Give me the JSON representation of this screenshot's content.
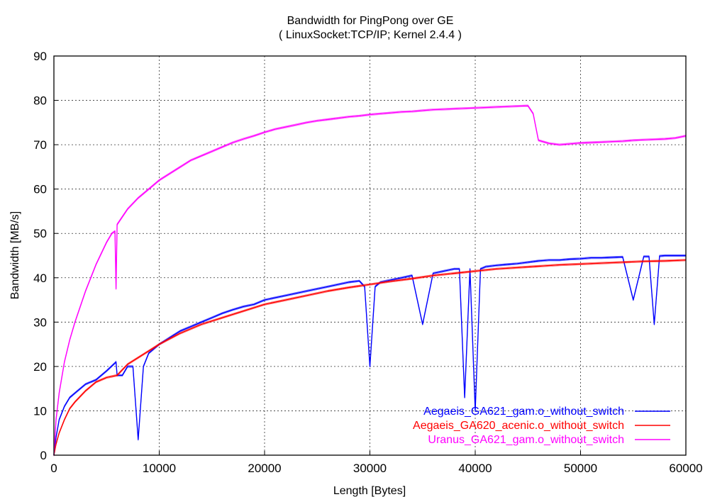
{
  "chart_data": {
    "type": "line",
    "title": "Bandwidth for PingPong over GE",
    "subtitle": "( LinuxSocket:TCP/IP; Kernel 2.4.4 )",
    "xlabel": "Length [Bytes]",
    "ylabel": "Bandwidth [MB/s]",
    "xlim": [
      0,
      60000
    ],
    "ylim": [
      0,
      90
    ],
    "xticks": [
      0,
      10000,
      20000,
      30000,
      40000,
      50000,
      60000
    ],
    "yticks": [
      0,
      10,
      20,
      30,
      40,
      50,
      60,
      70,
      80,
      90
    ],
    "grid": true,
    "legend_position": "bottom-right",
    "series": [
      {
        "name": "Aegaeis_GA621_gam.o_without_switch",
        "color": "#0000ff",
        "x": [
          0,
          200,
          500,
          1000,
          1500,
          2000,
          3000,
          4000,
          5000,
          5900,
          6000,
          6500,
          7000,
          7500,
          8000,
          8500,
          9000,
          10000,
          11000,
          12000,
          13000,
          14000,
          15000,
          16000,
          17000,
          18000,
          19000,
          20000,
          22000,
          24000,
          26000,
          28000,
          29000,
          29500,
          30000,
          30500,
          31000,
          32000,
          33000,
          34000,
          35000,
          36000,
          37000,
          38000,
          38500,
          39000,
          39500,
          40000,
          40500,
          41000,
          42000,
          43000,
          44000,
          45000,
          46000,
          47000,
          48000,
          49000,
          50000,
          51000,
          52000,
          53000,
          54000,
          55000,
          56000,
          56500,
          57000,
          57500,
          58000,
          59000,
          60000
        ],
        "y": [
          0,
          4,
          8,
          11,
          13,
          14,
          16,
          17,
          19,
          21,
          18,
          18,
          20,
          20,
          3.5,
          20,
          23,
          25,
          26.5,
          28,
          29,
          30,
          31,
          32,
          32.8,
          33.5,
          34,
          35,
          36,
          37,
          38,
          39,
          39.3,
          38,
          20,
          38,
          39,
          39.5,
          40,
          40.5,
          29.5,
          41,
          41.5,
          42,
          42,
          13,
          42,
          10,
          42,
          42.5,
          42.8,
          43,
          43.2,
          43.5,
          43.8,
          44,
          44,
          44.2,
          44.3,
          44.5,
          44.5,
          44.6,
          44.7,
          35,
          44.8,
          44.8,
          29.5,
          44.9,
          45,
          45,
          45
        ]
      },
      {
        "name": "Aegaeis_GA620_acenic.o_without_switch",
        "color": "#ff0000",
        "x": [
          0,
          200,
          500,
          1000,
          1500,
          2000,
          3000,
          4000,
          5000,
          6000,
          7000,
          8000,
          9000,
          10000,
          12000,
          14000,
          16000,
          18000,
          20000,
          22000,
          24000,
          26000,
          28000,
          30000,
          32000,
          34000,
          36000,
          38000,
          40000,
          42000,
          44000,
          46000,
          48000,
          50000,
          52000,
          54000,
          56000,
          58000,
          60000
        ],
        "y": [
          0,
          2.5,
          5,
          8,
          10.5,
          12,
          14.5,
          16.5,
          17.5,
          18,
          20.5,
          22,
          23.5,
          25,
          27.5,
          29.5,
          31,
          32.5,
          34,
          35,
          36,
          37,
          37.8,
          38.5,
          39.2,
          39.8,
          40.5,
          41,
          41.5,
          42,
          42.3,
          42.6,
          42.9,
          43.1,
          43.3,
          43.5,
          43.7,
          43.8,
          44
        ]
      },
      {
        "name": "Uranus_GA621_gam.o_without_switch",
        "color": "#ff00ff",
        "x": [
          0,
          200,
          500,
          1000,
          1500,
          2000,
          3000,
          4000,
          5000,
          5500,
          5800,
          5900,
          6000,
          7000,
          8000,
          9000,
          10000,
          11000,
          12000,
          13000,
          14000,
          15000,
          16000,
          17000,
          18000,
          19000,
          20000,
          21000,
          22000,
          23000,
          24000,
          25000,
          26000,
          27000,
          28000,
          29000,
          30000,
          31000,
          32000,
          33000,
          34000,
          35000,
          36000,
          37000,
          38000,
          39000,
          40000,
          41000,
          42000,
          43000,
          44000,
          45000,
          45500,
          46000,
          47000,
          48000,
          49000,
          50000,
          51000,
          52000,
          53000,
          54000,
          55000,
          56000,
          57000,
          58000,
          59000,
          60000
        ],
        "y": [
          0,
          8,
          14,
          21,
          26,
          30,
          37,
          43,
          48,
          50,
          50.5,
          37.5,
          52,
          55.5,
          58,
          60,
          62,
          63.5,
          65,
          66.5,
          67.5,
          68.5,
          69.5,
          70.5,
          71.3,
          72,
          72.8,
          73.5,
          74,
          74.5,
          75,
          75.4,
          75.7,
          76,
          76.3,
          76.5,
          76.8,
          77,
          77.2,
          77.4,
          77.5,
          77.7,
          77.9,
          78,
          78.1,
          78.2,
          78.3,
          78.4,
          78.5,
          78.6,
          78.7,
          78.8,
          77,
          71,
          70.3,
          70,
          70.2,
          70.4,
          70.5,
          70.6,
          70.7,
          70.8,
          71,
          71.1,
          71.2,
          71.3,
          71.5,
          72
        ]
      }
    ]
  }
}
